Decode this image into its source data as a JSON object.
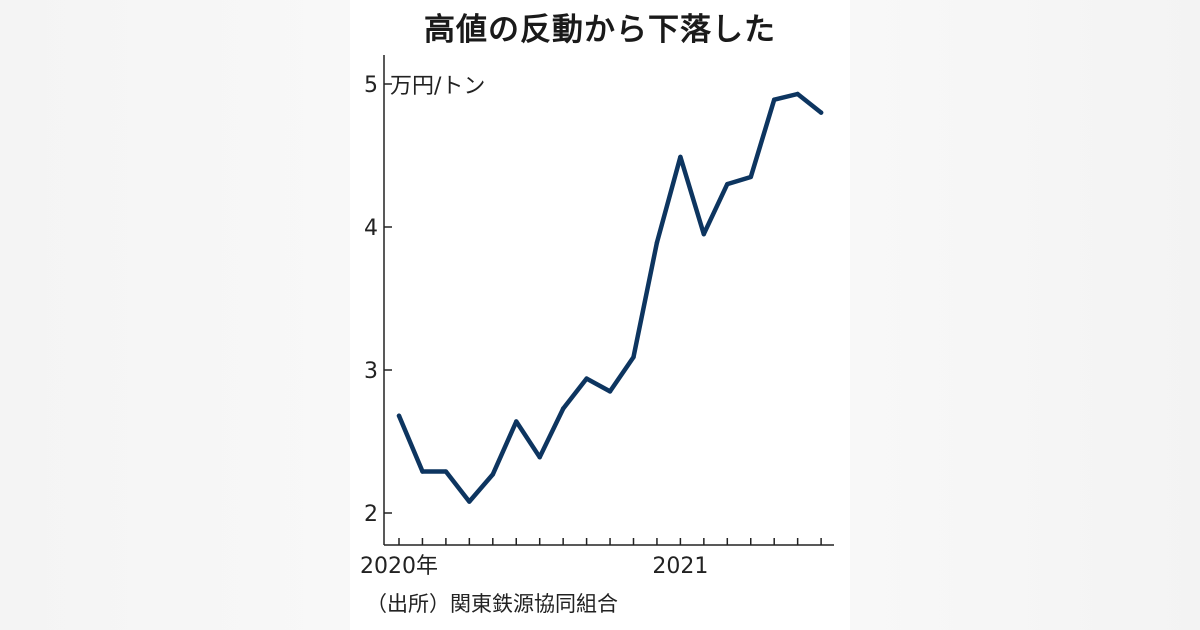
{
  "title": "高値の反動から下落した",
  "source": "（出所）関東鉄源協同組合",
  "colors": {
    "line": "#0d3560",
    "axis": "#222222",
    "background": "#ffffff"
  },
  "chart_data": {
    "type": "line",
    "title": "高値の反動から下落した",
    "unit_label": "万円/トン",
    "ylim": [
      2,
      5
    ],
    "y_ticks": [
      "2",
      "3",
      "4",
      "5"
    ],
    "x_ticks": [
      {
        "label": "2020年",
        "index": 0
      },
      {
        "label": "2021",
        "index": 12
      }
    ],
    "grid": false,
    "legend": "none",
    "series": [
      {
        "values": [
          2.68,
          2.29,
          2.29,
          2.08,
          2.27,
          2.64,
          2.39,
          2.73,
          2.94,
          2.85,
          3.09,
          3.89,
          4.49,
          3.95,
          4.3,
          4.35,
          4.89,
          4.93,
          4.8
        ]
      }
    ]
  }
}
